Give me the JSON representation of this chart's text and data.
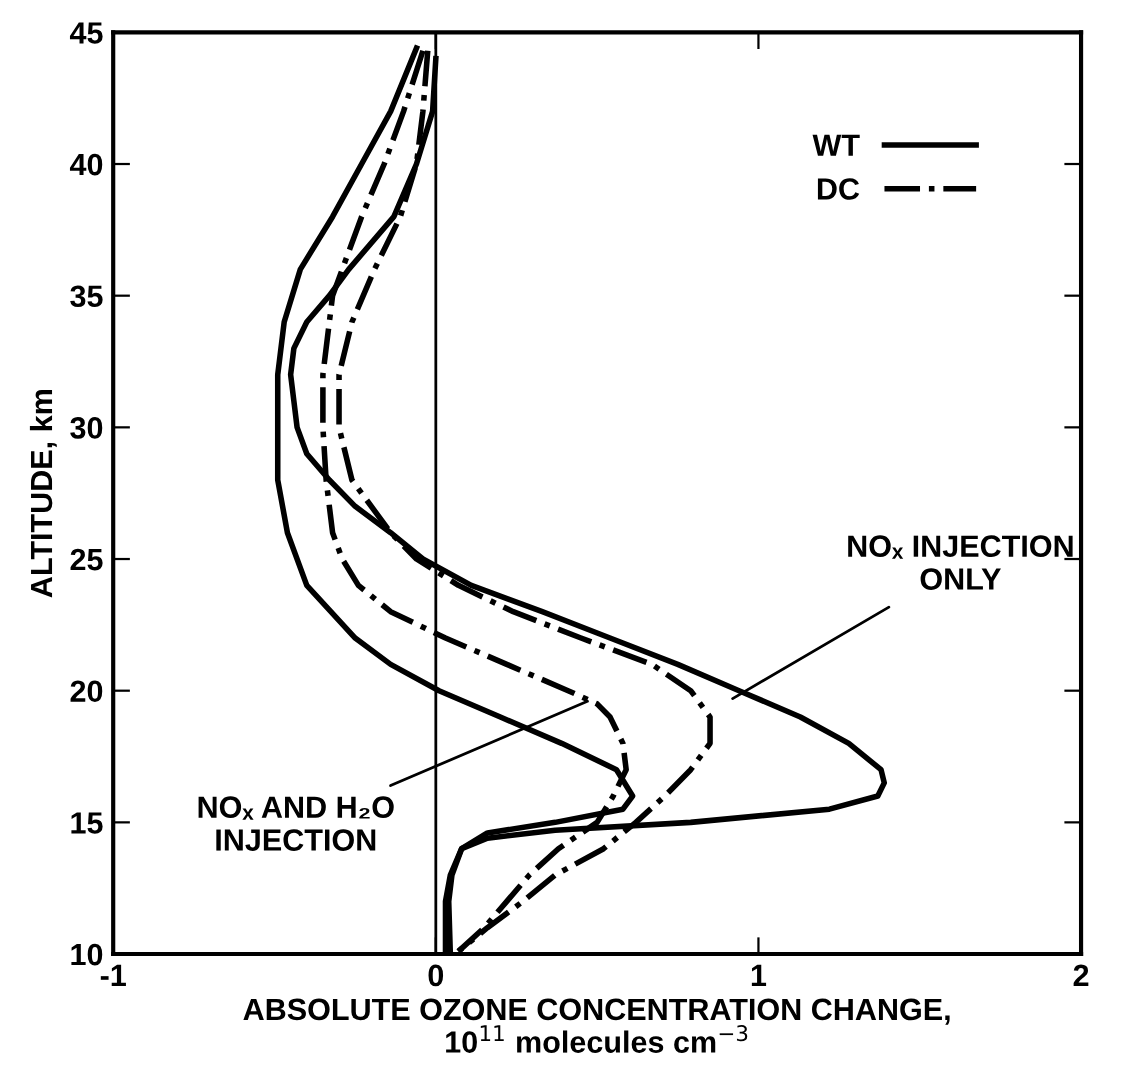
{
  "chart_data": {
    "type": "line",
    "xlabel": "ABSOLUTE OZONE CONCENTRATION CHANGE,\n10$^{11}$ molecules cm$^{−3}$",
    "ylabel": "ALTITUDE, km",
    "xlim": [
      -1,
      2
    ],
    "xticks": [
      -1,
      0,
      1,
      2
    ],
    "ylim": [
      10,
      45
    ],
    "yticks": [
      10,
      15,
      20,
      25,
      30,
      35,
      40,
      45
    ],
    "grid": false,
    "legend": "top right",
    "marker": "none",
    "ref_lines": [
      {
        "axis": "x",
        "value": 0,
        "color": "#000000"
      }
    ],
    "annotations": [
      {
        "text": "NOₓ AND H₂O\nINJECTION",
        "x": 0.47,
        "y": 19.6
      },
      {
        "text": "NOₓ INJECTION\nONLY",
        "x": 0.92,
        "y": 19.7
      }
    ],
    "series": [
      {
        "name": "WT",
        "color": "#000000",
        "line_style": "solid",
        "values": [
          44.4,
          42,
          40,
          38,
          36,
          34,
          32,
          30,
          28,
          26,
          24,
          22,
          21,
          20,
          19,
          18,
          17,
          16,
          15.5,
          15,
          14.6,
          14,
          13,
          12,
          10
        ],
        "x": [
          -0.06,
          -0.14,
          -0.23,
          -0.32,
          -0.42,
          -0.47,
          -0.49,
          -0.49,
          -0.49,
          -0.46,
          -0.4,
          -0.25,
          -0.14,
          0.01,
          0.2,
          0.39,
          0.56,
          0.61,
          0.58,
          0.37,
          0.16,
          0.08,
          0.045,
          0.03,
          0.03
        ]
      },
      {
        "color": "#000000",
        "line_style": "solid",
        "values": [
          44,
          42,
          40,
          38,
          36,
          35,
          34,
          33,
          32,
          31,
          30,
          29,
          28,
          27,
          26,
          25,
          24,
          23,
          22,
          21,
          20,
          19,
          18,
          17,
          16.5,
          16,
          15.5,
          15,
          14.7,
          14.4,
          14,
          13,
          12,
          10
        ],
        "x": [
          0,
          -0.01,
          -0.06,
          -0.13,
          -0.27,
          -0.33,
          -0.4,
          -0.44,
          -0.45,
          -0.44,
          -0.43,
          -0.4,
          -0.33,
          -0.25,
          -0.14,
          -0.04,
          0.11,
          0.33,
          0.54,
          0.75,
          0.94,
          1.13,
          1.28,
          1.38,
          1.39,
          1.37,
          1.22,
          0.79,
          0.37,
          0.16,
          0.08,
          0.05,
          0.04,
          0.045
        ]
      },
      {
        "name": "DC",
        "color": "#000000",
        "line_style": "dashdot",
        "values": [
          44.3,
          42,
          40,
          38,
          36,
          35,
          34,
          32,
          30,
          28,
          26,
          25,
          24,
          23,
          22,
          21,
          20,
          19.5,
          19,
          18,
          17,
          16,
          15,
          14,
          13,
          12,
          11,
          10.1
        ],
        "x": [
          -0.04,
          -0.1,
          -0.16,
          -0.23,
          -0.29,
          -0.32,
          -0.33,
          -0.35,
          -0.35,
          -0.34,
          -0.32,
          -0.29,
          -0.24,
          -0.14,
          0.03,
          0.22,
          0.41,
          0.5,
          0.54,
          0.58,
          0.59,
          0.55,
          0.5,
          0.38,
          0.29,
          0.22,
          0.15,
          0.07
        ]
      },
      {
        "color": "#000000",
        "line_style": "dashdot",
        "values": [
          44.3,
          42,
          40,
          38,
          36,
          34,
          32,
          30,
          28,
          26,
          25,
          24,
          23,
          22,
          21,
          20,
          19,
          18,
          17,
          16,
          15,
          14,
          13,
          12,
          11,
          10.1
        ],
        "x": [
          -0.025,
          -0.04,
          -0.06,
          -0.11,
          -0.19,
          -0.26,
          -0.3,
          -0.3,
          -0.26,
          -0.14,
          -0.06,
          0.07,
          0.24,
          0.45,
          0.67,
          0.79,
          0.85,
          0.85,
          0.79,
          0.71,
          0.62,
          0.52,
          0.37,
          0.27,
          0.16,
          0.07
        ]
      }
    ]
  }
}
